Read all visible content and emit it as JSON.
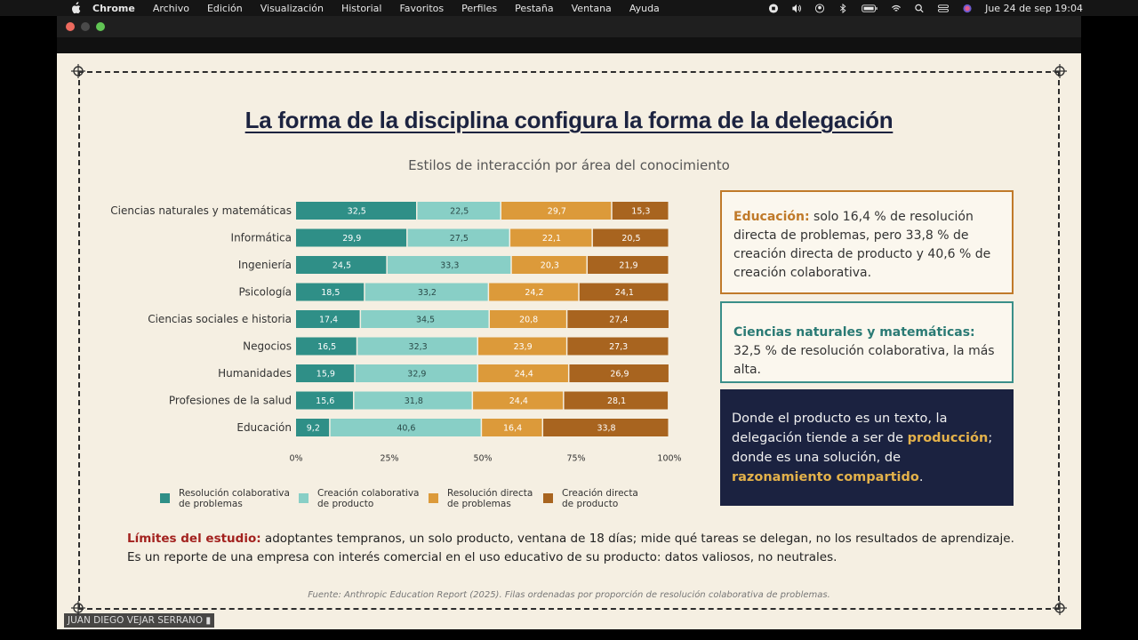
{
  "menubar": {
    "items": [
      "Chrome",
      "Archivo",
      "Edición",
      "Visualización",
      "Historial",
      "Favoritos",
      "Perfiles",
      "Pestaña",
      "Ventana",
      "Ayuda"
    ],
    "clock": "Jue 24 de sep  19:04",
    "battery": "100%"
  },
  "slide": {
    "title": "La forma de la disciplina configura la forma de la delegación",
    "subtitle": "Estilos de interacción por área del conocimiento",
    "box1": {
      "label": "Educación:",
      "text": " solo 16,4 % de resolución directa de problemas, pero 33,8 % de creación directa de producto y 40,6 % de creación colaborativa."
    },
    "box2": {
      "label": "Ciencias naturales y matemáticas:",
      "text": " 32,5 % de resolución colaborativa, la más alta."
    },
    "box3": {
      "t1": "Donde el producto es un texto, la delegación tiende a ser de ",
      "h1": "producción",
      "t2": "; donde es una solución, de ",
      "h2": "razonamiento compartido",
      "t3": "."
    },
    "limits": {
      "label": "Límites del estudio:",
      "text": " adoptantes tempranos, un solo producto, ventana de 18 días; mide qué tareas se delegan, no los resultados de aprendizaje. Es un reporte de una empresa con interés comercial en el uso educativo de su producto: datos valiosos, no neutrales."
    },
    "source": "Fuente: Anthropic Education Report (2025). Filas ordenadas por proporción de resolución colaborativa de problemas."
  },
  "name_tag": "JUAN DIEGO VEJAR SERRANO",
  "chart_data": {
    "type": "bar",
    "orientation": "horizontal",
    "stacked": true,
    "categories": [
      "Ciencias naturales y matemáticas",
      "Informática",
      "Ingeniería",
      "Psicología",
      "Ciencias sociales e historia",
      "Negocios",
      "Humanidades",
      "Profesiones de la salud",
      "Educación"
    ],
    "series": [
      {
        "name": "Resolución colaborativa de problemas",
        "color": "#2f8f87",
        "values": [
          32.5,
          29.9,
          24.5,
          18.5,
          17.4,
          16.5,
          15.9,
          15.6,
          9.2
        ]
      },
      {
        "name": "Creación colaborativa de producto",
        "color": "#88cfc6",
        "values": [
          22.5,
          27.5,
          33.3,
          33.2,
          34.5,
          32.3,
          32.9,
          31.8,
          40.6
        ]
      },
      {
        "name": "Resolución directa de problemas",
        "color": "#dc9a3a",
        "values": [
          29.7,
          22.1,
          20.3,
          24.2,
          20.8,
          23.9,
          24.4,
          24.4,
          16.4
        ]
      },
      {
        "name": "Creación directa de producto",
        "color": "#a8641f",
        "values": [
          15.3,
          20.5,
          21.9,
          24.1,
          27.4,
          27.3,
          26.9,
          28.1,
          33.8
        ]
      }
    ],
    "value_labels": [
      [
        "32,5",
        "22,5",
        "29,7",
        "15,3"
      ],
      [
        "29,9",
        "27,5",
        "22,1",
        "20,5"
      ],
      [
        "24,5",
        "33,3",
        "20,3",
        "21,9"
      ],
      [
        "18,5",
        "33,2",
        "24,2",
        "24,1"
      ],
      [
        "17,4",
        "34,5",
        "20,8",
        "27,4"
      ],
      [
        "16,5",
        "32,3",
        "23,9",
        "27,3"
      ],
      [
        "15,9",
        "32,9",
        "24,4",
        "26,9"
      ],
      [
        "15,6",
        "31,8",
        "24,4",
        "28,1"
      ],
      [
        "9,2",
        "40,6",
        "16,4",
        "33,8"
      ]
    ],
    "legend": [
      [
        "Resolución colaborativa",
        "de problemas"
      ],
      [
        "Creación colaborativa",
        "de producto"
      ],
      [
        "Resolución directa",
        "de problemas"
      ],
      [
        "Creación directa",
        "de producto"
      ]
    ],
    "xticks": [
      "0%",
      "25%",
      "50%",
      "75%",
      "100%"
    ],
    "xlim": [
      0,
      100
    ],
    "legend_position": "bottom",
    "grid": false
  }
}
